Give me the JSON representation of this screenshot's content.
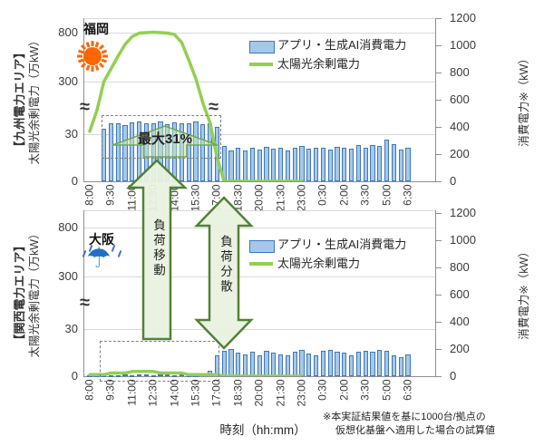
{
  "colors": {
    "bar_fill": "#A5C8E8",
    "bar_border": "#3D77BB",
    "line": "#92D050",
    "arrow_fill": "#E9F2E0",
    "arrow_border": "#538135",
    "sun": "#FF6600",
    "umbrella": "#2070C8",
    "box_border": "#808080"
  },
  "misc": {
    "axis_break_symbol": "≈"
  },
  "x_axis_label": "時刻（hh:mm）",
  "footnote": {
    "line1": "※本実証結果値を基に1000台/拠点の",
    "line2": "仮想化基盤へ適用した場合の試算値"
  },
  "arrows": [
    {
      "label": "負荷移動",
      "direction": "up"
    },
    {
      "label": "負荷分散",
      "direction": "both"
    }
  ],
  "charts": [
    {
      "area_title": "【九州電力エリア】",
      "y_left_title": "太陽光余剰電力（万kW）",
      "y_right_title": "消費電力※（kW）",
      "city": "福岡",
      "weather": "sunny",
      "legend": {
        "bar_label": "アプリ・生成AI消費電力",
        "line_label": "太陽光余剰電力"
      },
      "annotation": "最大31%"
    },
    {
      "area_title": "【関西電力エリア】",
      "y_left_title": "太陽光余剰電力（万kW）",
      "y_right_title": "消費電力※（kW）",
      "city": "大阪",
      "weather": "rainy",
      "legend": {
        "bar_label": "アプリ・生成AI消費電力",
        "line_label": "太陽光余剰電力"
      },
      "annotation": ""
    }
  ],
  "chart_data": [
    {
      "type": "combo",
      "title": "九州電力エリア（福岡）",
      "x": [
        "8:00",
        "8:30",
        "9:00",
        "9:30",
        "10:00",
        "10:30",
        "11:00",
        "11:30",
        "12:00",
        "12:30",
        "13:00",
        "13:30",
        "14:00",
        "14:30",
        "15:00",
        "15:30",
        "16:00",
        "16:30",
        "17:00",
        "17:30",
        "18:00",
        "18:30",
        "19:00",
        "19:30",
        "20:00",
        "20:30",
        "21:00",
        "21:30",
        "22:00",
        "22:30",
        "23:00",
        "23:30",
        "0:00",
        "0:30",
        "1:00",
        "1:30",
        "2:00",
        "2:30",
        "3:00",
        "3:30",
        "4:00",
        "4:30",
        "5:00",
        "5:30",
        "6:00",
        "6:30"
      ],
      "x_tick_labels": [
        "8:00",
        "9:30",
        "11:00",
        "12:30",
        "14:00",
        "15:30",
        "17:00",
        "18:30",
        "20:00",
        "21:30",
        "23:00",
        "0:30",
        "2:00",
        "3:30",
        "5:00",
        "6:30"
      ],
      "left_axis": {
        "title": "太陽光余剰電力（万kW）",
        "tick_labels": [
          "800",
          "300",
          "30",
          "0"
        ],
        "broken": true,
        "break_between": [
          30,
          300
        ]
      },
      "right_axis": {
        "title": "消費電力※（kW）",
        "tick_labels": [
          "1200",
          "1000",
          "800",
          "600",
          "400",
          "200",
          "0"
        ],
        "min": 0,
        "max": 1200,
        "step": 200
      },
      "series": [
        {
          "name": "アプリ・生成AI消費電力",
          "type": "bar",
          "axis": "right",
          "unit": "kW",
          "values": [
            0,
            0,
            390,
            425,
            430,
            415,
            435,
            440,
            425,
            430,
            440,
            420,
            435,
            425,
            430,
            440,
            420,
            430,
            400,
            260,
            230,
            245,
            225,
            250,
            235,
            255,
            240,
            250,
            230,
            245,
            260,
            240,
            250,
            245,
            235,
            255,
            245,
            240,
            270,
            250,
            265,
            260,
            310,
            275,
            235,
            250
          ]
        },
        {
          "name": "太陽光余剰電力",
          "type": "line",
          "axis": "left",
          "unit": "万kW",
          "values": [
            45,
            150,
            300,
            430,
            560,
            680,
            760,
            795,
            800,
            805,
            800,
            795,
            780,
            700,
            520,
            330,
            190,
            90,
            15,
            0,
            0,
            0,
            0,
            0,
            0,
            0,
            0,
            0,
            0,
            0,
            0,
            null,
            null,
            null,
            null,
            null,
            null,
            null,
            null,
            null,
            null,
            null,
            null,
            null,
            null,
            null
          ]
        }
      ],
      "annotation_label": "最大31%",
      "highlight_box_time_range": "9:00-17:00"
    },
    {
      "type": "combo",
      "title": "関西電力エリア（大阪）",
      "x": [
        "8:00",
        "8:30",
        "9:00",
        "9:30",
        "10:00",
        "10:30",
        "11:00",
        "11:30",
        "12:00",
        "12:30",
        "13:00",
        "13:30",
        "14:00",
        "14:30",
        "15:00",
        "15:30",
        "16:00",
        "16:30",
        "17:00",
        "17:30",
        "18:00",
        "18:30",
        "19:00",
        "19:30",
        "20:00",
        "20:30",
        "21:00",
        "21:30",
        "22:00",
        "22:30",
        "23:00",
        "23:30",
        "0:00",
        "0:30",
        "1:00",
        "1:30",
        "2:00",
        "2:30",
        "3:00",
        "3:30",
        "4:00",
        "4:30",
        "5:00",
        "5:30",
        "6:00",
        "6:30"
      ],
      "x_tick_labels": [
        "8:00",
        "9:30",
        "11:00",
        "12:30",
        "14:00",
        "15:30",
        "17:00",
        "18:30",
        "20:00",
        "21:30",
        "23:00",
        "0:30",
        "2:00",
        "3:30",
        "5:00",
        "6:30"
      ],
      "left_axis": {
        "title": "太陽光余剰電力（万kW）",
        "tick_labels": [
          "800",
          "300",
          "30",
          "0"
        ],
        "broken": true,
        "break_between": [
          30,
          300
        ]
      },
      "right_axis": {
        "title": "消費電力※（kW）",
        "tick_labels": [
          "1200",
          "1000",
          "800",
          "600",
          "400",
          "200",
          "0"
        ],
        "min": 0,
        "max": 1200,
        "step": 200
      },
      "series": [
        {
          "name": "アプリ・生成AI消費電力",
          "type": "bar",
          "axis": "right",
          "unit": "kW",
          "values": [
            5,
            6,
            5,
            8,
            6,
            10,
            8,
            12,
            10,
            8,
            12,
            10,
            8,
            10,
            8,
            6,
            15,
            40,
            150,
            185,
            195,
            170,
            160,
            175,
            150,
            185,
            170,
            160,
            150,
            180,
            190,
            165,
            150,
            185,
            190,
            180,
            170,
            150,
            180,
            185,
            175,
            190,
            185,
            150,
            140,
            155
          ]
        },
        {
          "name": "太陽光余剰電力",
          "type": "line",
          "axis": "left",
          "unit": "万kW",
          "values": [
            1,
            1,
            1,
            2,
            2,
            2,
            3,
            3,
            3,
            3,
            2,
            2,
            2,
            2,
            1,
            1,
            1,
            1,
            1,
            0,
            0,
            0,
            0,
            0,
            0,
            0,
            0,
            0,
            0,
            0,
            0,
            null,
            null,
            null,
            null,
            null,
            null,
            null,
            null,
            null,
            null,
            null,
            null,
            null,
            null,
            null
          ]
        }
      ],
      "annotation_label": "",
      "highlight_box_time_range": "8:00-17:00"
    }
  ]
}
